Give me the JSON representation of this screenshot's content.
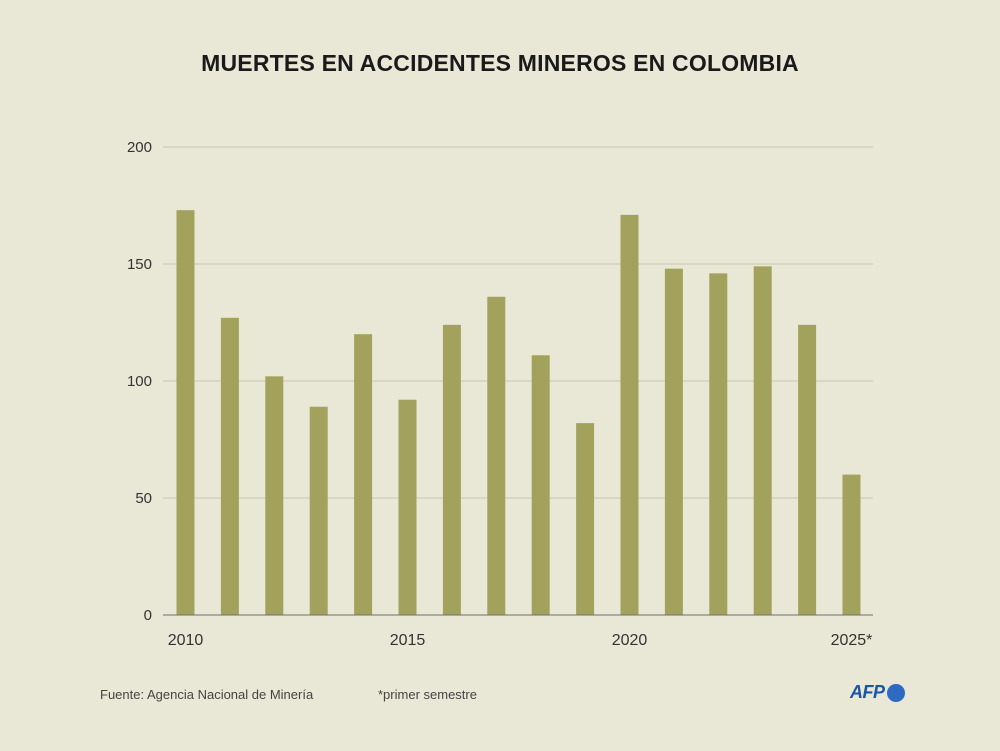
{
  "colors": {
    "bar": "#a2a25c",
    "grid": "#c8c6b4",
    "axis": "#6e6e6e",
    "background": "#e9e7d6",
    "logo": "#1b55a8"
  },
  "chart_data": {
    "type": "bar",
    "title": "MUERTES EN ACCIDENTES MINEROS EN COLOMBIA",
    "xlabel": "",
    "ylabel": "",
    "ylim": [
      0,
      200
    ],
    "yticks": [
      0,
      50,
      100,
      150,
      200
    ],
    "categories": [
      "2010",
      "2011",
      "2012",
      "2013",
      "2014",
      "2015",
      "2016",
      "2017",
      "2018",
      "2019",
      "2020",
      "2021",
      "2022",
      "2023",
      "2024",
      "2025"
    ],
    "values": [
      173,
      127,
      102,
      89,
      120,
      92,
      124,
      136,
      111,
      82,
      171,
      148,
      146,
      149,
      124,
      60
    ],
    "xtick_labels": [
      {
        "index": 0,
        "label": "2010"
      },
      {
        "index": 5,
        "label": "2015"
      },
      {
        "index": 10,
        "label": "2020"
      },
      {
        "index": 15,
        "label": "2025*"
      }
    ]
  },
  "footer": {
    "source": "Fuente: Agencia Nacional de Minería",
    "note": "*primer semestre",
    "logo_text": "AFP"
  }
}
